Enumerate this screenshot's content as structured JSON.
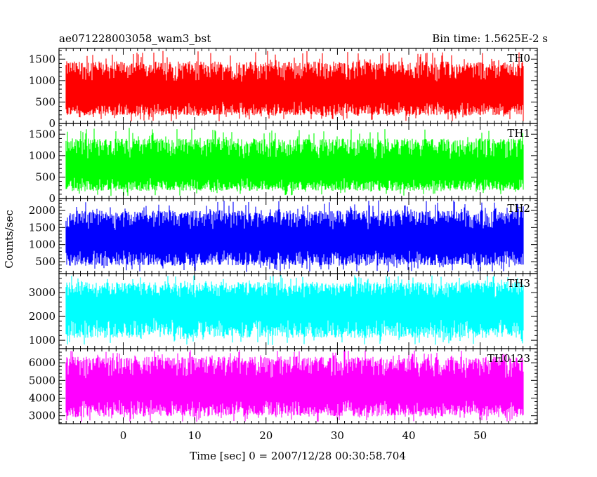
{
  "header": {
    "title": "ae071228003058_wam3_bst",
    "bin_time": "Bin time: 1.5625E-2 s"
  },
  "axes": {
    "ylabel": "Counts/sec",
    "xlabel": "Time [sec] 0 = 2007/12/28 00:30:58.704"
  },
  "chart_data": {
    "type": "line",
    "title": "ae071228003058_wam3_bst",
    "subtitle": "Bin time: 1.5625E-2 s",
    "xlabel": "Time [sec] 0 = 2007/12/28 00:30:58.704",
    "ylabel": "Counts/sec",
    "xlim": [
      -9,
      58
    ],
    "x_ticks": [
      0,
      10,
      20,
      30,
      40,
      50
    ],
    "x_data_range": [
      -8,
      56
    ],
    "grid": false,
    "panels": [
      {
        "name": "TH0",
        "color": "#ff0000",
        "ylim": [
          0,
          1750
        ],
        "y_ticks": [
          0,
          500,
          1000,
          1500
        ],
        "mean": 700,
        "low": 180,
        "high": 1450,
        "peak": 1700,
        "floor": 50
      },
      {
        "name": "TH1",
        "color": "#00ff00",
        "ylim": [
          0,
          1750
        ],
        "y_ticks": [
          0,
          500,
          1000,
          1500
        ],
        "mean": 650,
        "low": 180,
        "high": 1400,
        "peak": 1650,
        "floor": 60
      },
      {
        "name": "TH2",
        "color": "#0000ff",
        "ylim": [
          150,
          2350
        ],
        "y_ticks": [
          500,
          1000,
          1500,
          2000
        ],
        "mean": 1100,
        "low": 380,
        "high": 2000,
        "peak": 2300,
        "floor": 200
      },
      {
        "name": "TH3",
        "color": "#00ffff",
        "ylim": [
          650,
          3800
        ],
        "y_ticks": [
          1000,
          2000,
          3000
        ],
        "mean": 2400,
        "low": 1100,
        "high": 3450,
        "peak": 3750,
        "floor": 800
      },
      {
        "name": "TH0123",
        "color": "#ff00ff",
        "ylim": [
          2550,
          6800
        ],
        "y_ticks": [
          3000,
          4000,
          5000,
          6000
        ],
        "mean": 4450,
        "low": 2950,
        "high": 6350,
        "peak": 6750,
        "floor": 2650
      }
    ]
  }
}
